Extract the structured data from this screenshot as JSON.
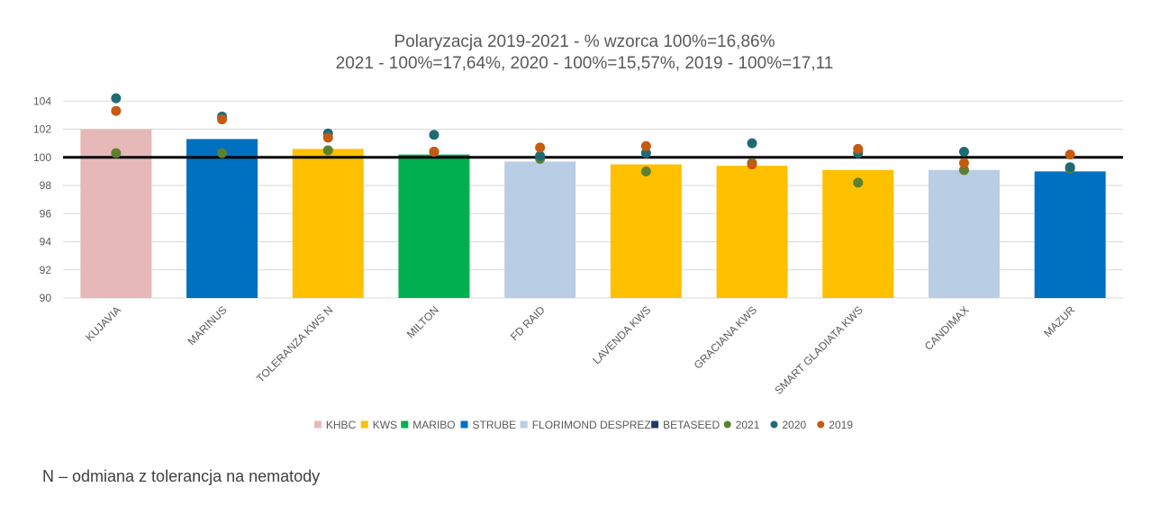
{
  "chart_data": {
    "type": "bar",
    "title_lines": [
      "Polaryzacja 2019-2021 - % wzorca 100%=16,86%",
      "2021 - 100%=17,64%, 2020 - 100%=15,57%, 2019 - 100%=17,11"
    ],
    "xlabel": "",
    "ylabel": "",
    "ylim": [
      90,
      105
    ],
    "yticks": [
      90,
      92,
      94,
      96,
      98,
      100,
      102,
      104
    ],
    "reference_line": 100,
    "grid": true,
    "legend_position": "bottom",
    "categories": [
      "KUJAVIA",
      "MARINUS",
      "TOLERANZA KWS N",
      "MILTON",
      "FD RAID",
      "LAVENDA KWS",
      "GRACIANA KWS",
      "SMART GLADIATA KWS",
      "CANDIMAX",
      "MAZUR"
    ],
    "bar_values": [
      102.0,
      101.3,
      100.6,
      100.2,
      99.7,
      99.5,
      99.4,
      99.1,
      99.1,
      99.0
    ],
    "bar_breeders": [
      "KHBC",
      "STRUBE",
      "KWS",
      "MARIBO",
      "FLORIMOND DESPREZ",
      "KWS",
      "KWS",
      "KWS",
      "FLORIMOND DESPREZ",
      "STRUBE"
    ],
    "breeders": [
      {
        "name": "KHBC",
        "color": "#E6B9B8"
      },
      {
        "name": "KWS",
        "color": "#FFC000"
      },
      {
        "name": "MARIBO",
        "color": "#00B050"
      },
      {
        "name": "STRUBE",
        "color": "#0070C0"
      },
      {
        "name": "FLORIMOND DESPREZ",
        "color": "#B9CDE5"
      },
      {
        "name": "BETASEED",
        "color": "#1F3864"
      }
    ],
    "series": [
      {
        "name": "2021",
        "color": "#5E7F2E",
        "values": [
          100.3,
          100.3,
          100.5,
          100.4,
          99.9,
          99.0,
          99.6,
          98.2,
          99.1,
          99.2
        ]
      },
      {
        "name": "2020",
        "color": "#1F6B75",
        "values": [
          104.2,
          102.9,
          101.7,
          101.6,
          100.1,
          100.3,
          101.0,
          100.3,
          100.4,
          99.3
        ]
      },
      {
        "name": "2019",
        "color": "#C55A11",
        "values": [
          103.3,
          102.7,
          101.4,
          100.4,
          100.7,
          100.8,
          99.5,
          100.6,
          99.6,
          100.2
        ]
      }
    ]
  },
  "footnote": "N – odmiana z tolerancja na nematody"
}
